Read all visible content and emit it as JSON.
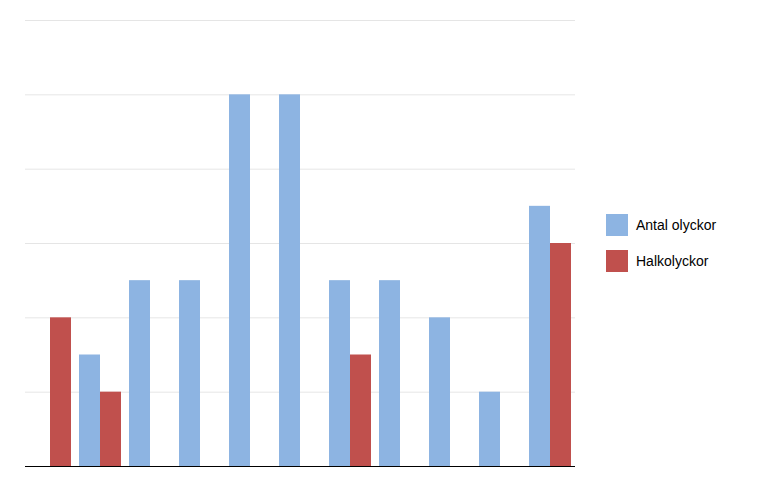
{
  "chart_data": {
    "type": "bar",
    "categories": [
      null,
      null,
      null,
      null,
      null,
      null,
      null,
      null,
      null,
      null,
      null
    ],
    "series": [
      {
        "name": "Antal olyckor",
        "color": "#8db4e2",
        "values": [
          0,
          3,
          5,
          5,
          10,
          10,
          5,
          5,
          4,
          2,
          7
        ]
      },
      {
        "name": "Halkolyckor",
        "color": "#c0504d",
        "values": [
          4,
          2,
          0,
          0,
          0,
          0,
          3,
          0,
          0,
          0,
          6
        ]
      }
    ],
    "ylim": [
      0,
      12
    ],
    "yticks": [
      2,
      4,
      6,
      8,
      10,
      12
    ],
    "grid": true,
    "legend": "right",
    "tick_labels": false
  }
}
